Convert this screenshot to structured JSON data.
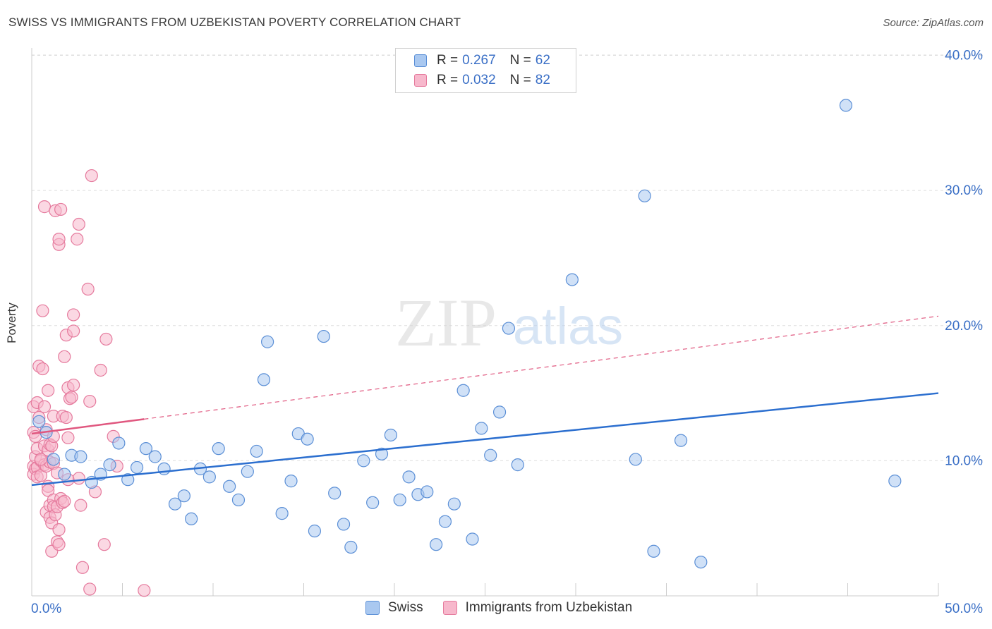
{
  "title": "SWISS VS IMMIGRANTS FROM UZBEKISTAN POVERTY CORRELATION CHART",
  "source": "Source: ZipAtlas.com",
  "watermark": {
    "zip": "ZIP",
    "atlas": "atlas"
  },
  "legend": {
    "r_label": "R =",
    "n_label": "N =",
    "rows": [
      {
        "r": "0.267",
        "n": "62"
      },
      {
        "r": "0.032",
        "n": "82"
      }
    ]
  },
  "bottom_legend": [
    "Swiss",
    "Immigrants from Uzbekistan"
  ],
  "colors": {
    "swiss_fill": "#a9c8f0",
    "swiss_stroke": "#5b8fd6",
    "swiss_line": "#2c6fcf",
    "uzb_fill": "#f7b8cc",
    "uzb_stroke": "#e57a9d",
    "uzb_line": "#e0577f",
    "tick_label": "#3a6fc6",
    "grid": "#dddddd"
  },
  "chart_data": {
    "type": "scatter",
    "title": "SWISS VS IMMIGRANTS FROM UZBEKISTAN POVERTY CORRELATION CHART",
    "xlabel": "",
    "ylabel": "Poverty",
    "xlim": [
      0,
      50
    ],
    "ylim": [
      0,
      40
    ],
    "x_tick_labels": [
      "0.0%",
      "50.0%"
    ],
    "y_ticks": [
      10,
      20,
      30,
      40
    ],
    "y_tick_labels": [
      "10.0%",
      "20.0%",
      "30.0%",
      "40.0%"
    ],
    "grid": true,
    "legend_position": "top-center",
    "series": [
      {
        "name": "Swiss",
        "r": 0.267,
        "n": 62,
        "trend": {
          "x0": 0,
          "y0": 8.2,
          "x1": 50,
          "y1": 15.0,
          "style": "solid"
        },
        "points": [
          [
            0.4,
            12.9
          ],
          [
            0.8,
            12.1
          ],
          [
            1.2,
            10.1
          ],
          [
            1.8,
            9.0
          ],
          [
            2.2,
            10.4
          ],
          [
            2.7,
            10.3
          ],
          [
            3.3,
            8.4
          ],
          [
            3.8,
            9.0
          ],
          [
            4.3,
            9.7
          ],
          [
            4.8,
            11.3
          ],
          [
            5.3,
            8.6
          ],
          [
            5.8,
            9.5
          ],
          [
            6.3,
            10.9
          ],
          [
            6.8,
            10.3
          ],
          [
            7.3,
            9.4
          ],
          [
            7.9,
            6.8
          ],
          [
            8.4,
            7.4
          ],
          [
            8.8,
            5.7
          ],
          [
            9.3,
            9.4
          ],
          [
            9.8,
            8.8
          ],
          [
            10.3,
            10.9
          ],
          [
            10.9,
            8.1
          ],
          [
            11.4,
            7.1
          ],
          [
            11.9,
            9.2
          ],
          [
            12.4,
            10.7
          ],
          [
            12.8,
            16.0
          ],
          [
            13.0,
            18.8
          ],
          [
            13.8,
            6.1
          ],
          [
            14.3,
            8.5
          ],
          [
            14.7,
            12.0
          ],
          [
            15.2,
            11.6
          ],
          [
            15.6,
            4.8
          ],
          [
            16.1,
            19.2
          ],
          [
            16.7,
            7.6
          ],
          [
            17.2,
            5.3
          ],
          [
            17.6,
            3.6
          ],
          [
            18.3,
            10.0
          ],
          [
            18.8,
            6.9
          ],
          [
            19.3,
            10.5
          ],
          [
            19.8,
            11.9
          ],
          [
            20.3,
            7.1
          ],
          [
            20.8,
            8.8
          ],
          [
            21.3,
            7.5
          ],
          [
            21.8,
            7.7
          ],
          [
            22.3,
            3.8
          ],
          [
            22.8,
            5.5
          ],
          [
            23.3,
            6.8
          ],
          [
            23.8,
            15.2
          ],
          [
            24.3,
            4.2
          ],
          [
            24.8,
            12.4
          ],
          [
            25.3,
            10.4
          ],
          [
            25.8,
            13.6
          ],
          [
            26.3,
            19.8
          ],
          [
            26.8,
            9.7
          ],
          [
            29.8,
            23.4
          ],
          [
            33.3,
            10.1
          ],
          [
            33.8,
            29.6
          ],
          [
            34.3,
            3.3
          ],
          [
            35.8,
            11.5
          ],
          [
            36.9,
            2.5
          ],
          [
            44.9,
            36.3
          ],
          [
            47.6,
            8.5
          ]
        ]
      },
      {
        "name": "Immigrants from Uzbekistan",
        "r": 0.032,
        "n": 82,
        "trend": {
          "x0": 0,
          "y0": 12.0,
          "x1": 50,
          "y1": 20.7,
          "solid_until_x": 6.2,
          "style": "solid-then-dashed"
        },
        "points": [
          [
            0.1,
            14.0
          ],
          [
            0.1,
            12.1
          ],
          [
            0.1,
            9.6
          ],
          [
            0.1,
            9.0
          ],
          [
            0.2,
            11.8
          ],
          [
            0.2,
            10.3
          ],
          [
            0.2,
            9.4
          ],
          [
            0.3,
            14.3
          ],
          [
            0.3,
            10.9
          ],
          [
            0.3,
            9.5
          ],
          [
            0.3,
            8.8
          ],
          [
            0.4,
            17.0
          ],
          [
            0.4,
            13.2
          ],
          [
            0.5,
            10.0
          ],
          [
            0.5,
            8.9
          ],
          [
            0.6,
            16.8
          ],
          [
            0.6,
            21.1
          ],
          [
            0.7,
            28.8
          ],
          [
            0.7,
            14.0
          ],
          [
            0.7,
            11.1
          ],
          [
            0.7,
            9.7
          ],
          [
            0.8,
            12.3
          ],
          [
            0.8,
            9.6
          ],
          [
            0.8,
            6.2
          ],
          [
            0.9,
            15.2
          ],
          [
            0.9,
            10.8
          ],
          [
            0.9,
            8.1
          ],
          [
            0.9,
            7.8
          ],
          [
            1.0,
            11.2
          ],
          [
            1.0,
            9.9
          ],
          [
            1.0,
            6.7
          ],
          [
            1.0,
            5.8
          ],
          [
            1.1,
            11.1
          ],
          [
            1.1,
            5.4
          ],
          [
            1.1,
            3.3
          ],
          [
            1.2,
            13.3
          ],
          [
            1.2,
            11.8
          ],
          [
            1.2,
            9.8
          ],
          [
            1.2,
            7.1
          ],
          [
            1.2,
            6.6
          ],
          [
            1.3,
            28.5
          ],
          [
            1.3,
            6.0
          ],
          [
            1.4,
            6.6
          ],
          [
            1.4,
            4.0
          ],
          [
            1.5,
            26.0
          ],
          [
            1.5,
            26.4
          ],
          [
            1.5,
            4.9
          ],
          [
            1.5,
            3.8
          ],
          [
            1.6,
            28.6
          ],
          [
            1.6,
            7.2
          ],
          [
            1.7,
            6.9
          ],
          [
            1.7,
            13.3
          ],
          [
            1.8,
            17.7
          ],
          [
            1.8,
            7.0
          ],
          [
            1.9,
            13.2
          ],
          [
            1.9,
            19.3
          ],
          [
            2.0,
            15.4
          ],
          [
            2.0,
            11.7
          ],
          [
            2.1,
            14.6
          ],
          [
            2.2,
            14.7
          ],
          [
            2.3,
            19.6
          ],
          [
            2.3,
            15.6
          ],
          [
            2.3,
            20.8
          ],
          [
            2.5,
            26.4
          ],
          [
            2.6,
            27.5
          ],
          [
            2.6,
            8.7
          ],
          [
            2.7,
            6.7
          ],
          [
            2.8,
            2.1
          ],
          [
            3.1,
            22.7
          ],
          [
            3.2,
            14.4
          ],
          [
            3.2,
            0.5
          ],
          [
            3.3,
            31.1
          ],
          [
            3.5,
            7.7
          ],
          [
            3.8,
            16.7
          ],
          [
            4.0,
            3.8
          ],
          [
            4.1,
            19.0
          ],
          [
            4.5,
            11.8
          ],
          [
            4.7,
            9.6
          ],
          [
            6.2,
            0.4
          ],
          [
            0.5,
            10.1
          ],
          [
            1.4,
            9.1
          ],
          [
            2.0,
            8.6
          ]
        ]
      }
    ]
  }
}
